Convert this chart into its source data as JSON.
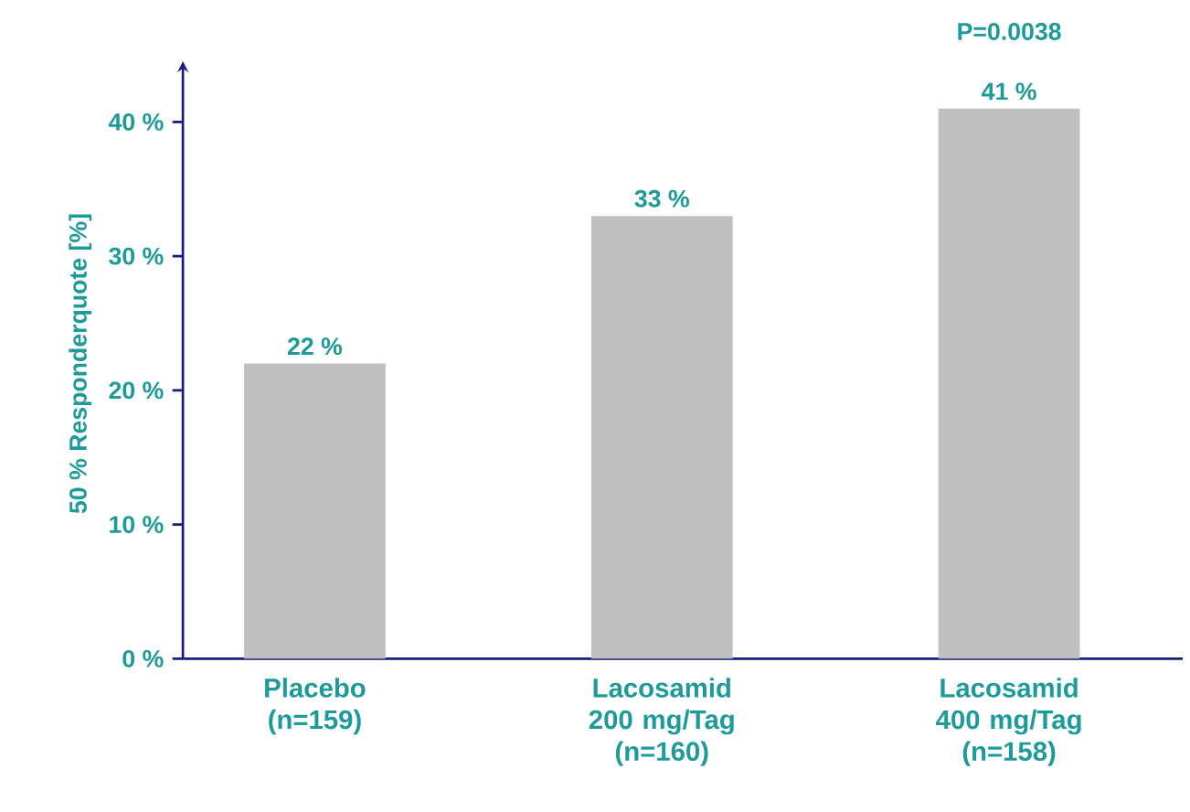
{
  "chart_data": {
    "type": "bar",
    "ylabel": "50 % Responderquote [%]",
    "categories": [
      "**Placebo** (n=159)",
      "**Lacosamid** 200 mg/Tag (n=160)",
      "**Lacosamid** 400 mg/Tag (n=158)"
    ],
    "values": [
      22,
      33,
      41
    ],
    "value_labels": [
      "22 %",
      "33 %",
      "41 %"
    ],
    "color": "#c0c0c0",
    "ylim": [
      0,
      44
    ],
    "yticks": [
      {
        "value": 0,
        "label": "0 %"
      },
      {
        "value": 10,
        "label": "10 %"
      },
      {
        "value": 20,
        "label": "20 %"
      },
      {
        "value": 30,
        "label": "30 %"
      },
      {
        "value": 40,
        "label": "40 %"
      }
    ],
    "annotations": [
      "P=0.0038"
    ],
    "grid": false
  }
}
